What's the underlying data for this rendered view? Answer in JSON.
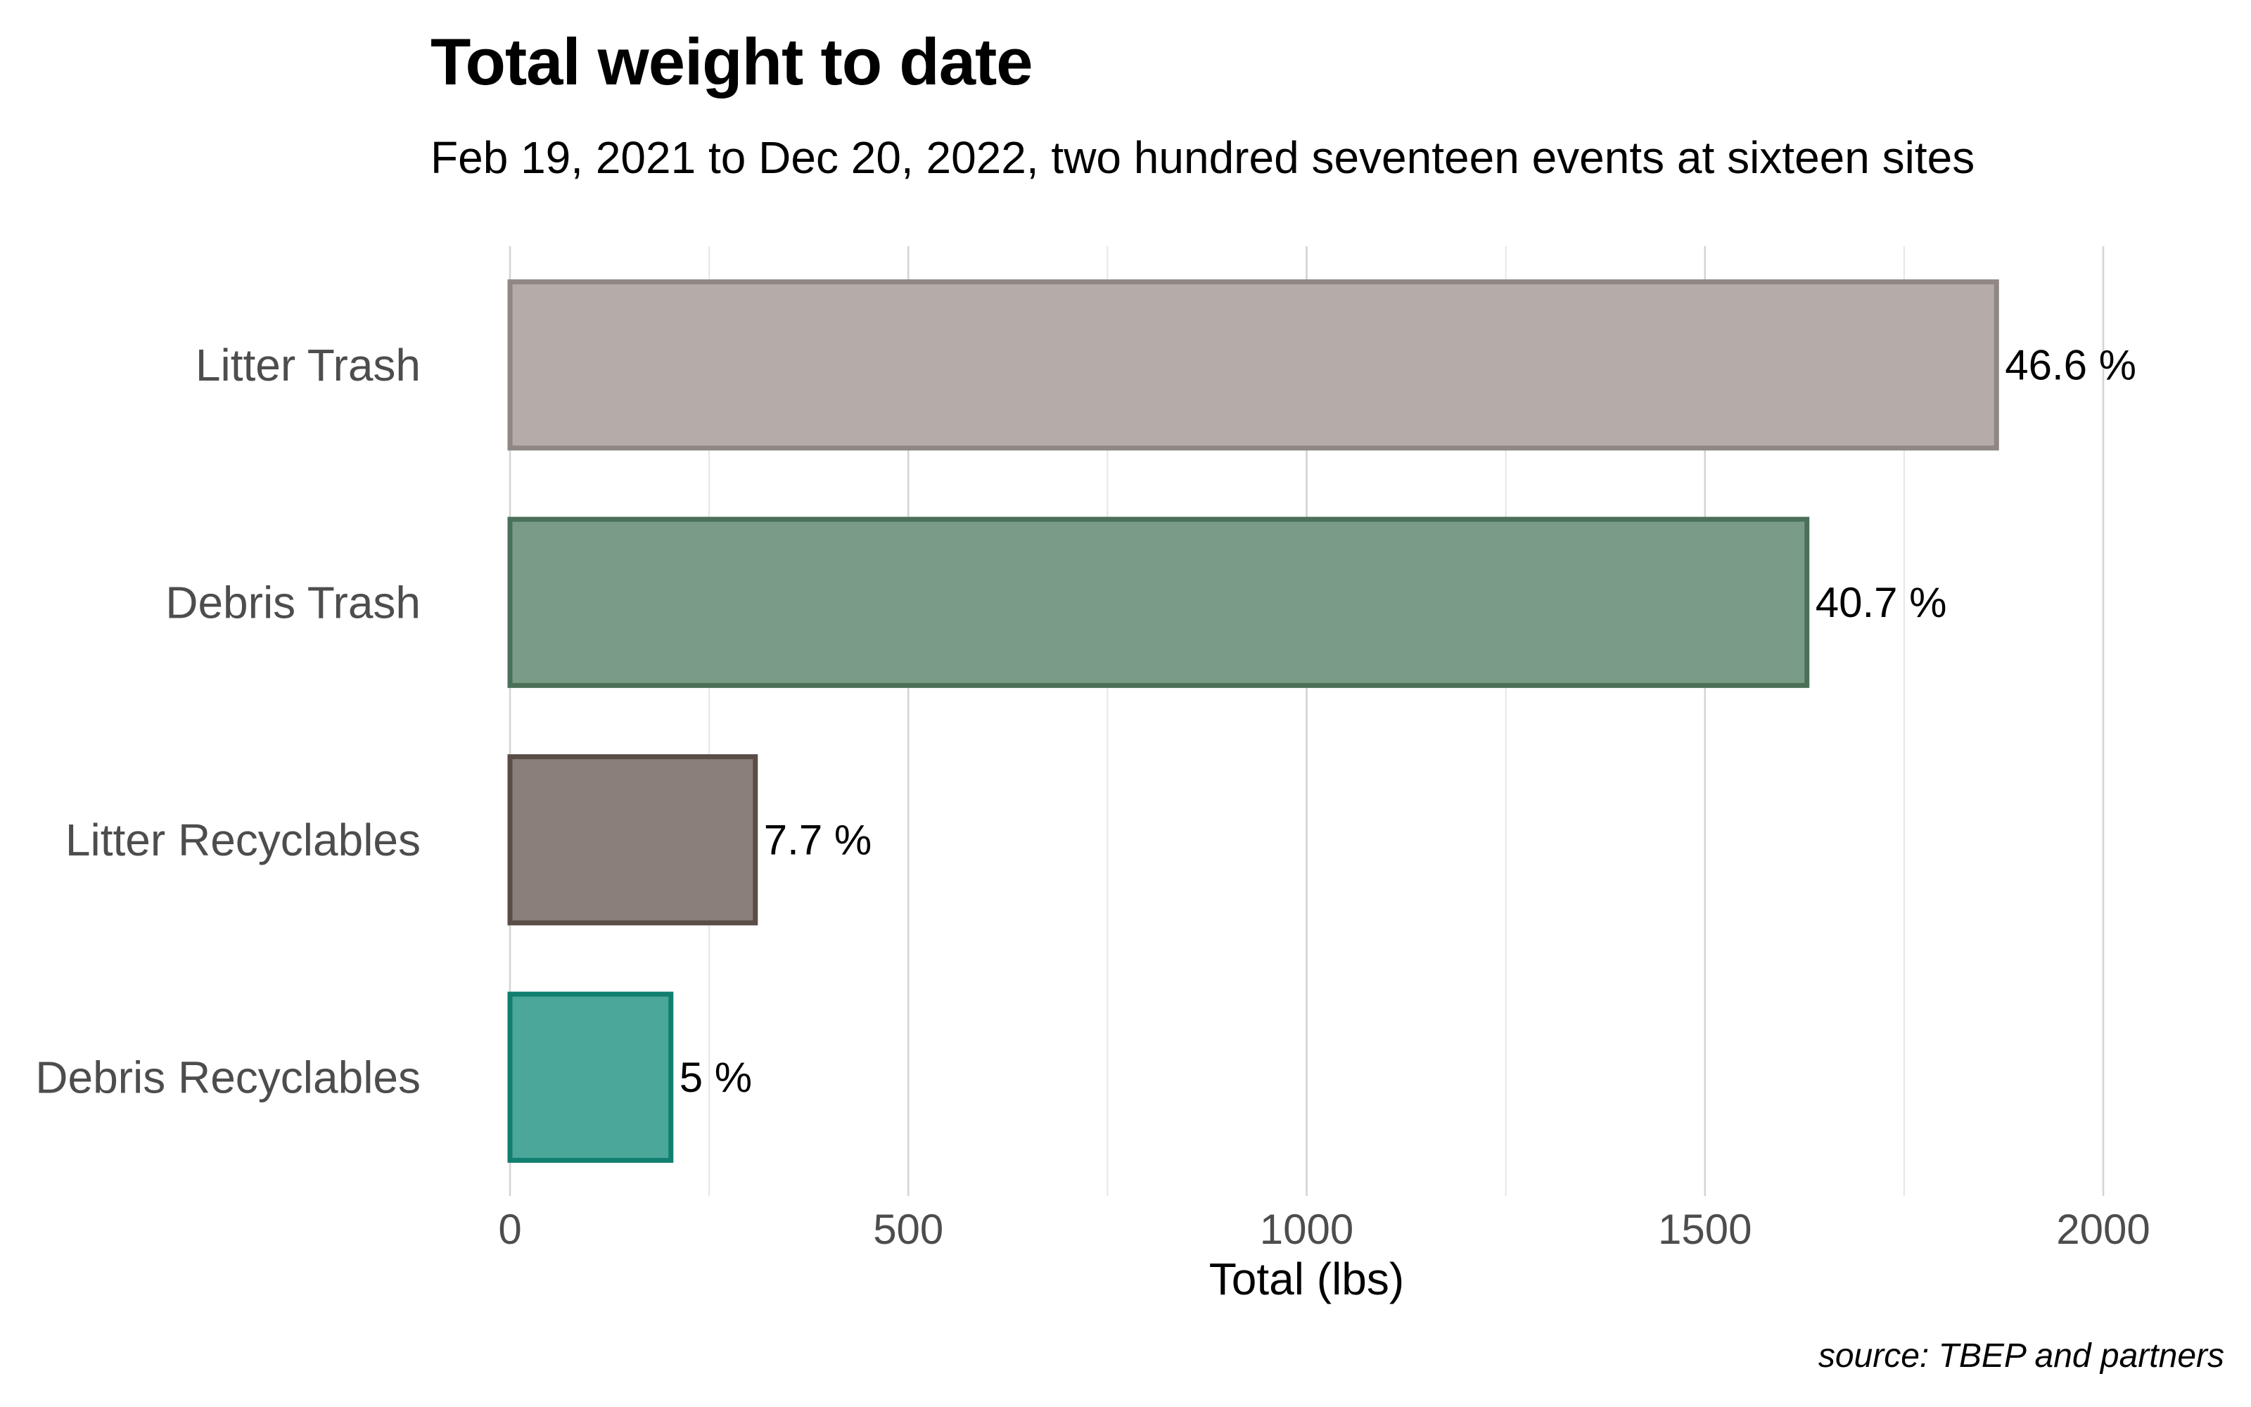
{
  "chart_data": {
    "type": "bar",
    "orientation": "horizontal",
    "title": "Total weight to date",
    "subtitle": "Feb 19, 2021 to Dec 20, 2022, two hundred seventeen events at sixteen sites",
    "caption": "source: TBEP and partners",
    "xlabel": "Total (lbs)",
    "ylabel": "",
    "xlim": [
      0,
      2000
    ],
    "x_ticks": [
      0,
      500,
      1000,
      1500,
      2000
    ],
    "grid": true,
    "legend": "none",
    "categories": [
      "Litter Trash",
      "Debris Trash",
      "Litter Recyclables",
      "Debris Recyclables"
    ],
    "values": [
      1866,
      1628,
      308,
      202
    ],
    "data_labels": [
      "46.6 %",
      "40.7 %",
      "7.7 %",
      "5 %"
    ],
    "fill_colors": [
      "#b5aba8",
      "#7a9c87",
      "#8a7f79",
      "#4ba799"
    ],
    "border_colors": [
      "#8e8783",
      "#4b7059",
      "#5a4c46",
      "#107f6f"
    ]
  }
}
